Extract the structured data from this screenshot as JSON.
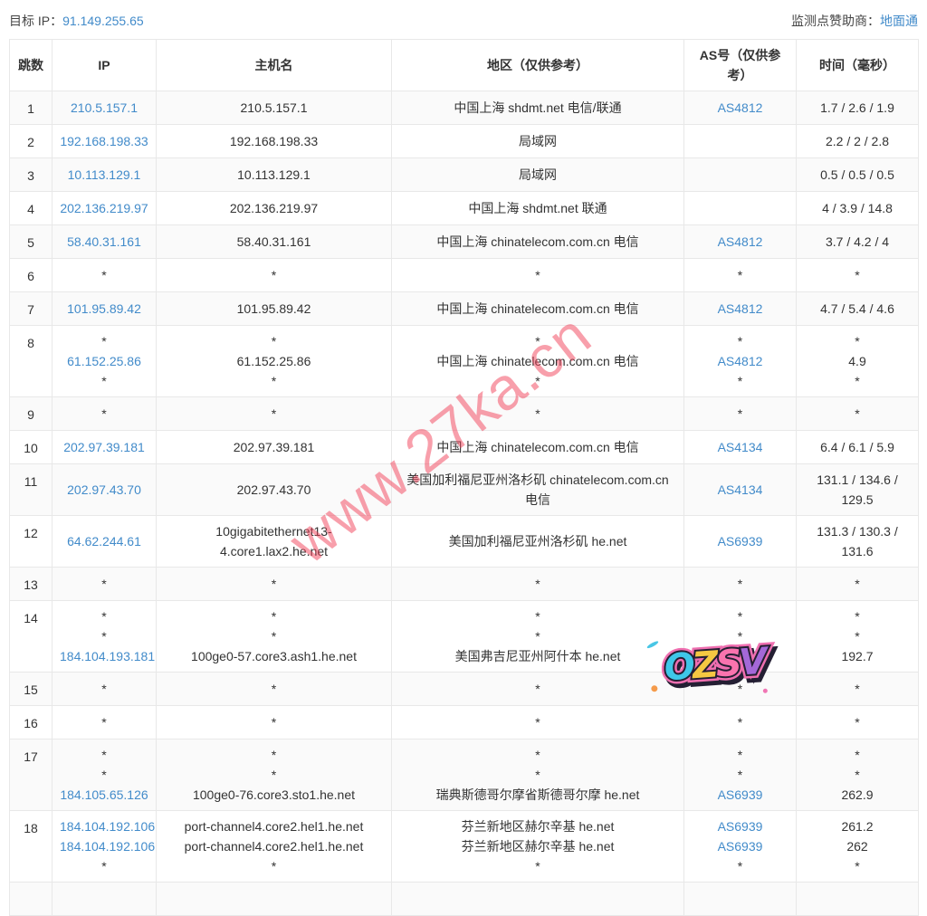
{
  "page": {
    "target_ip_label": "目标 IP：",
    "target_ip": "91.149.255.65",
    "sponsor_label": "监测点赞助商：",
    "sponsor_link": "地面通"
  },
  "watermark": {
    "text": "www.27ka.cn",
    "color": "#f24057"
  },
  "sticker": {
    "text": "OZSV"
  },
  "colors": {
    "link": "#428bca",
    "stripe": "#fafafa",
    "border": "#e8e8e8"
  },
  "table": {
    "headers": {
      "hop": "跳数",
      "ip": "IP",
      "host": "主机名",
      "region": "地区（仅供参考）",
      "asn": "AS号（仅供参考）",
      "time": "时间（毫秒）"
    },
    "rows": [
      {
        "hop": "1",
        "ip": [
          "210.5.157.1"
        ],
        "host": [
          "210.5.157.1"
        ],
        "region": [
          "中国上海 shdmt.net 电信/联通"
        ],
        "asn": [
          "AS4812"
        ],
        "time": [
          "1.7 / 2.6 / 1.9"
        ]
      },
      {
        "hop": "2",
        "ip": [
          "192.168.198.33"
        ],
        "host": [
          "192.168.198.33"
        ],
        "region": [
          "局域网"
        ],
        "asn": [
          ""
        ],
        "time": [
          "2.2 / 2 / 2.8"
        ]
      },
      {
        "hop": "3",
        "ip": [
          "10.113.129.1"
        ],
        "host": [
          "10.113.129.1"
        ],
        "region": [
          "局域网"
        ],
        "asn": [
          ""
        ],
        "time": [
          "0.5 / 0.5 / 0.5"
        ]
      },
      {
        "hop": "4",
        "ip": [
          "202.136.219.97"
        ],
        "host": [
          "202.136.219.97"
        ],
        "region": [
          "中国上海 shdmt.net 联通"
        ],
        "asn": [
          ""
        ],
        "time": [
          "4 / 3.9 / 14.8"
        ]
      },
      {
        "hop": "5",
        "ip": [
          "58.40.31.161"
        ],
        "host": [
          "58.40.31.161"
        ],
        "region": [
          "中国上海 chinatelecom.com.cn 电信"
        ],
        "asn": [
          "AS4812"
        ],
        "time": [
          "3.7 / 4.2 / 4"
        ]
      },
      {
        "hop": "6",
        "ip": [
          "*"
        ],
        "host": [
          "*"
        ],
        "region": [
          "*"
        ],
        "asn": [
          "*"
        ],
        "time": [
          "*"
        ]
      },
      {
        "hop": "7",
        "ip": [
          "101.95.89.42"
        ],
        "host": [
          "101.95.89.42"
        ],
        "region": [
          "中国上海 chinatelecom.com.cn 电信"
        ],
        "asn": [
          "AS4812"
        ],
        "time": [
          "4.7 / 5.4 / 4.6"
        ]
      },
      {
        "hop": "8",
        "ip": [
          "*",
          "61.152.25.86",
          "*"
        ],
        "host": [
          "*",
          "61.152.25.86",
          "*"
        ],
        "region": [
          "*",
          "中国上海 chinatelecom.com.cn 电信",
          "*"
        ],
        "asn": [
          "*",
          "AS4812",
          "*"
        ],
        "time": [
          "*",
          "4.9",
          "*"
        ]
      },
      {
        "hop": "9",
        "ip": [
          "*"
        ],
        "host": [
          "*"
        ],
        "region": [
          "*"
        ],
        "asn": [
          "*"
        ],
        "time": [
          "*"
        ]
      },
      {
        "hop": "10",
        "ip": [
          "202.97.39.181"
        ],
        "host": [
          "202.97.39.181"
        ],
        "region": [
          "中国上海 chinatelecom.com.cn 电信"
        ],
        "asn": [
          "AS4134"
        ],
        "time": [
          "6.4 / 6.1 / 5.9"
        ]
      },
      {
        "hop": "11",
        "ip": [
          "202.97.43.70"
        ],
        "host": [
          "202.97.43.70"
        ],
        "region": [
          "美国加利福尼亚州洛杉矶 chinatelecom.com.cn 电信"
        ],
        "asn": [
          "AS4134"
        ],
        "time": [
          "131.1 / 134.6 / 129.5"
        ]
      },
      {
        "hop": "12",
        "ip": [
          "64.62.244.61"
        ],
        "host": [
          "10gigabitethernet13-4.core1.lax2.he.net"
        ],
        "region": [
          "美国加利福尼亚州洛杉矶 he.net"
        ],
        "asn": [
          "AS6939"
        ],
        "time": [
          "131.3 / 130.3 / 131.6"
        ]
      },
      {
        "hop": "13",
        "ip": [
          "*"
        ],
        "host": [
          "*"
        ],
        "region": [
          "*"
        ],
        "asn": [
          "*"
        ],
        "time": [
          "*"
        ]
      },
      {
        "hop": "14",
        "ip": [
          "*",
          "*",
          "184.104.193.181"
        ],
        "host": [
          "*",
          "*",
          "100ge0-57.core3.ash1.he.net"
        ],
        "region": [
          "*",
          "*",
          "美国弗吉尼亚州阿什本 he.net"
        ],
        "asn": [
          "*",
          "*",
          "AS6939"
        ],
        "time": [
          "*",
          "*",
          "192.7"
        ]
      },
      {
        "hop": "15",
        "ip": [
          "*"
        ],
        "host": [
          "*"
        ],
        "region": [
          "*"
        ],
        "asn": [
          "*"
        ],
        "time": [
          "*"
        ]
      },
      {
        "hop": "16",
        "ip": [
          "*"
        ],
        "host": [
          "*"
        ],
        "region": [
          "*"
        ],
        "asn": [
          "*"
        ],
        "time": [
          "*"
        ]
      },
      {
        "hop": "17",
        "ip": [
          "*",
          "*",
          "184.105.65.126"
        ],
        "host": [
          "*",
          "*",
          "100ge0-76.core3.sto1.he.net"
        ],
        "region": [
          "*",
          "*",
          "瑞典斯德哥尔摩省斯德哥尔摩 he.net"
        ],
        "asn": [
          "*",
          "*",
          "AS6939"
        ],
        "time": [
          "*",
          "*",
          "262.9"
        ]
      },
      {
        "hop": "18",
        "ip": [
          "184.104.192.106",
          "184.104.192.106",
          "*"
        ],
        "host": [
          "port-channel4.core2.hel1.he.net",
          "port-channel4.core2.hel1.he.net",
          "*"
        ],
        "region": [
          "芬兰新地区赫尔辛基 he.net",
          "芬兰新地区赫尔辛基 he.net",
          "*"
        ],
        "asn": [
          "AS6939",
          "AS6939",
          "*"
        ],
        "time": [
          "261.2",
          "262",
          "*"
        ]
      },
      {
        "hop": "",
        "ip": [
          ""
        ],
        "host": [
          ""
        ],
        "region": [
          ""
        ],
        "asn": [
          ""
        ],
        "time": [
          ""
        ]
      }
    ]
  }
}
